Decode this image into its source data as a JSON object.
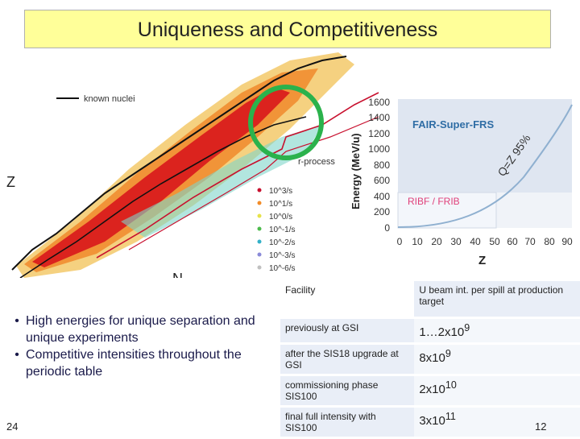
{
  "title": "Uniqueness and Competitiveness",
  "chart": {
    "legend_known": "known nuclei",
    "label_rprocess": "r-process",
    "axis_z": "Z",
    "axis_n": "N",
    "rate_legend": [
      "10^3/s",
      "10^1/s",
      "10^0/s",
      "10^-1/s",
      "10^-2/s",
      "10^-3/s",
      "10^-6/s"
    ],
    "rate_colors": [
      "#c8102e",
      "#f28c28",
      "#e7e34a",
      "#4cbb4c",
      "#33b0c8",
      "#8a8ad8",
      "#c0c0c0"
    ]
  },
  "energy_chart": {
    "y_label": "Energy (MeV/u)",
    "x_label": "Z",
    "yticks": [
      "0",
      "200",
      "400",
      "600",
      "800",
      "1000",
      "1200",
      "1400",
      "1600"
    ],
    "xticks": [
      "0",
      "10",
      "20",
      "30",
      "40",
      "50",
      "60",
      "70",
      "80",
      "90"
    ],
    "region_fair": "FAIR-Super-FRS",
    "region_ribf": "RIBF / FRIB",
    "q_label": "Q=Z 95%"
  },
  "bullets": [
    "High energies for unique separation and unique experiments",
    "Competitive intensities throughout the periodic table"
  ],
  "table": {
    "header_facility": "Facility",
    "header_intensity": "U beam int. per spill at production target",
    "rows": [
      {
        "facility": "previously at GSI",
        "base": "1…2x10",
        "exp": "9"
      },
      {
        "facility": "after the SIS18 upgrade at GSI",
        "base": "8x10",
        "exp": "9"
      },
      {
        "facility": "commissioning phase SIS100",
        "base": "2x10",
        "exp": "10"
      },
      {
        "facility": "final full intensity with SIS100",
        "base": "3x10",
        "exp": "11"
      }
    ]
  },
  "page_left": "24",
  "page_right": "12"
}
